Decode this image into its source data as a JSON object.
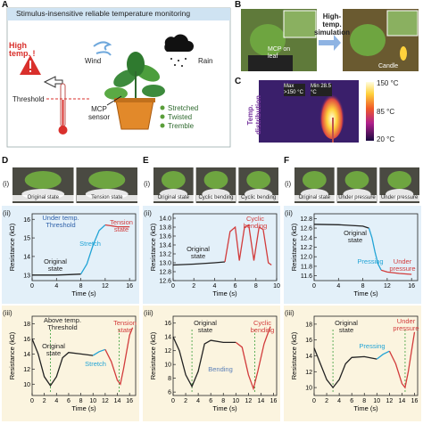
{
  "panel_a": {
    "letter": "A",
    "title": "Stimulus-insensitive reliable temperature monitoring",
    "high_temp": "High temp. !",
    "threshold": "Threshold",
    "wind": "Wind",
    "sensor": "MCP sensor",
    "rain": "Rain",
    "stimuli": [
      "Stretched",
      "Twisted",
      "Tremble"
    ]
  },
  "panel_b": {
    "letter": "B",
    "leaf_label": "MCP on leaf",
    "arrow_label": "High-temp. simulation",
    "candle": "Candle"
  },
  "panel_c": {
    "letter": "C",
    "side_label": "Temp. distribution",
    "max": "Max >150 °C",
    "min": "Min 28.5 °C",
    "colorbar": [
      "150 °C",
      "85 °C",
      "20 °C"
    ]
  },
  "columns": [
    {
      "letter": "D",
      "sub_labels": [
        "(i)",
        "(ii)",
        "(iii)"
      ],
      "photos": [
        "Original state",
        "Tension state"
      ],
      "charts": [
        {
          "xlabel": "Time (s)",
          "ylabel": "Resistance (kΩ)",
          "xlim": [
            0,
            17
          ],
          "ylim": [
            12.7,
            16.3
          ],
          "xticks": [
            0,
            4,
            8,
            12,
            16
          ],
          "yticks": [
            13,
            14,
            15,
            16
          ],
          "series": [
            {
              "color": "#222222",
              "x": [
                0,
                2,
                4,
                6,
                8
              ],
              "values": [
                13.0,
                13.0,
                13.0,
                13.02,
                13.05
              ]
            },
            {
              "color": "#22a4d6",
              "x": [
                8,
                9,
                10,
                11,
                12
              ],
              "values": [
                13.05,
                13.6,
                14.6,
                15.4,
                15.7
              ]
            },
            {
              "color": "#d23c3c",
              "x": [
                12,
                13,
                14,
                16
              ],
              "values": [
                15.7,
                15.65,
                15.6,
                15.6
              ]
            }
          ],
          "vlines": [],
          "annotations": [
            {
              "text": "Under temp. Threshold",
              "color": "#2d5fa8"
            },
            {
              "text": "Stretch",
              "color": "#22a4d6"
            },
            {
              "text": "Original state",
              "color": "#222222"
            },
            {
              "text": "Tension state",
              "color": "#d23c3c"
            }
          ]
        },
        {
          "xlabel": "Time (s)",
          "ylabel": "Resistance (kΩ)",
          "xlim": [
            0,
            17
          ],
          "ylim": [
            8.5,
            19
          ],
          "xticks": [
            0,
            2,
            4,
            6,
            8,
            10,
            12,
            14,
            16
          ],
          "yticks": [
            10,
            12,
            14,
            16,
            18
          ],
          "series": [
            {
              "color": "#222222",
              "x": [
                0,
                1,
                2,
                3,
                4,
                5,
                6,
                8,
                10
              ],
              "values": [
                16,
                14,
                11,
                9.8,
                11,
                13.5,
                14.2,
                14.0,
                13.8
              ]
            },
            {
              "color": "#22a4d6",
              "x": [
                10,
                11,
                12
              ],
              "values": [
                13.8,
                14.3,
                14.6
              ]
            },
            {
              "color": "#d23c3c",
              "x": [
                12,
                13,
                14,
                14.5,
                15,
                16,
                16.5
              ],
              "values": [
                14.6,
                13,
                10.5,
                10,
                12,
                16.5,
                17.5
              ]
            }
          ],
          "vlines": [
            3,
            14.3
          ],
          "annotations": [
            {
              "text": "Above temp. Threshold",
              "color": "#222222"
            },
            {
              "text": "Original state",
              "color": "#222222"
            },
            {
              "text": "Stretch",
              "color": "#22a4d6"
            },
            {
              "text": "Tension state",
              "color": "#d23c3c"
            }
          ]
        }
      ]
    },
    {
      "letter": "E",
      "sub_labels": [
        "(i)",
        "(ii)",
        "(iii)"
      ],
      "photos": [
        "Original state",
        "Cyclic bending",
        "Cyclic bending"
      ],
      "charts": [
        {
          "xlabel": "Time (s)",
          "ylabel": "Resistance (kΩ)",
          "xlim": [
            0,
            10
          ],
          "ylim": [
            12.6,
            14.1
          ],
          "xticks": [
            0,
            2,
            4,
            6,
            8,
            10
          ],
          "yticks": [
            12.6,
            12.8,
            {
              "value": 13,
              "label": "13.0"
            },
            13.2,
            13.4,
            13.6,
            13.8,
            {
              "value": 14,
              "label": "14.0"
            }
          ],
          "series": [
            {
              "color": "#222222",
              "x": [
                0,
                2,
                4,
                5
              ],
              "values": [
                12.95,
                12.97,
                13.0,
                13.02
              ]
            },
            {
              "color": "#d23c3c",
              "x": [
                5,
                5.5,
                6,
                6.4,
                6.9,
                7.3,
                7.8,
                8.3,
                8.7,
                9.2,
                9.5
              ],
              "values": [
                13.02,
                13.7,
                13.8,
                13.05,
                13.8,
                13.85,
                13.05,
                13.8,
                13.75,
                13.0,
                12.95
              ]
            }
          ],
          "vlines": [],
          "annotations": [
            {
              "text": "Original state",
              "color": "#222222"
            },
            {
              "text": "Cyclic bending",
              "color": "#d23c3c"
            }
          ]
        },
        {
          "xlabel": "Time (s)",
          "ylabel": "Resistance (kΩ)",
          "xlim": [
            0,
            16.5
          ],
          "ylim": [
            5.5,
            17
          ],
          "xticks": [
            0,
            2,
            4,
            6,
            8,
            10,
            12,
            14,
            16
          ],
          "yticks": [
            6,
            8,
            10,
            12,
            14,
            16
          ],
          "series": [
            {
              "color": "#222222",
              "x": [
                0,
                1,
                2,
                3,
                4,
                5,
                6,
                8,
                10
              ],
              "values": [
                14,
                12,
                8.5,
                6.8,
                9,
                13,
                13.5,
                13.2,
                13.2
              ]
            },
            {
              "color": "#d23c3c",
              "x": [
                10,
                11,
                12,
                12.8,
                13.5,
                14.5,
                15.5
              ],
              "values": [
                13.2,
                12.5,
                8.5,
                6.5,
                9,
                13,
                15.5
              ]
            }
          ],
          "vlines": [
            3,
            13
          ],
          "annotations": [
            {
              "text": "Original state",
              "color": "#222222"
            },
            {
              "text": "Cyclic bending",
              "color": "#d23c3c"
            },
            {
              "text": "Bending",
              "color": "#5a7fb8"
            }
          ]
        }
      ]
    },
    {
      "letter": "F",
      "sub_labels": [
        "(i)",
        "(ii)",
        "(iii)"
      ],
      "photos": [
        "Original state",
        "Under pressure",
        "Under pressure"
      ],
      "charts": [
        {
          "xlabel": "Time (s)",
          "ylabel": "Resistance (kΩ)",
          "xlim": [
            0,
            17
          ],
          "ylim": [
            11.5,
            12.9
          ],
          "xticks": [
            0,
            4,
            8,
            12,
            16
          ],
          "yticks": [
            11.6,
            11.8,
            {
              "value": 12,
              "label": "12.0"
            },
            12.2,
            12.4,
            12.6,
            12.8
          ],
          "series": [
            {
              "color": "#222222",
              "x": [
                0,
                4,
                8,
                9
              ],
              "values": [
                12.68,
                12.67,
                12.64,
                12.6
              ]
            },
            {
              "color": "#22a4d6",
              "x": [
                9,
                9.5,
                10,
                10.5,
                11
              ],
              "values": [
                12.6,
                12.4,
                12.1,
                11.85,
                11.72
              ]
            },
            {
              "color": "#d23c3c",
              "x": [
                11,
                12,
                14,
                16
              ],
              "values": [
                11.72,
                11.68,
                11.65,
                11.63
              ]
            }
          ],
          "vlines": [],
          "annotations": [
            {
              "text": "Original state",
              "color": "#222222"
            },
            {
              "text": "Pressing",
              "color": "#22a4d6"
            },
            {
              "text": "Under pressure",
              "color": "#d23c3c"
            }
          ]
        },
        {
          "xlabel": "Time (s)",
          "ylabel": "Resistance (kΩ)",
          "xlim": [
            0,
            16.5
          ],
          "ylim": [
            9,
            19
          ],
          "xticks": [
            0,
            2,
            4,
            6,
            8,
            10,
            12,
            14,
            16
          ],
          "yticks": [
            10,
            12,
            14,
            16,
            18
          ],
          "series": [
            {
              "color": "#222222",
              "x": [
                0,
                1,
                2,
                3,
                4,
                5,
                6,
                8,
                10
              ],
              "values": [
                15,
                13,
                11,
                10,
                11,
                13,
                13.8,
                13.9,
                13.6
              ]
            },
            {
              "color": "#22a4d6",
              "x": [
                10,
                11,
                12
              ],
              "values": [
                13.6,
                14.2,
                14.6
              ]
            },
            {
              "color": "#d23c3c",
              "x": [
                12,
                13,
                14,
                14.5,
                15,
                16
              ],
              "values": [
                14.6,
                13,
                10.5,
                10,
                12,
                17
              ]
            }
          ],
          "vlines": [
            3,
            14.5
          ],
          "annotations": [
            {
              "text": "Original state",
              "color": "#222222"
            },
            {
              "text": "Pressing",
              "color": "#22a4d6"
            },
            {
              "text": "Under pressure",
              "color": "#d23c3c"
            }
          ]
        }
      ]
    }
  ]
}
